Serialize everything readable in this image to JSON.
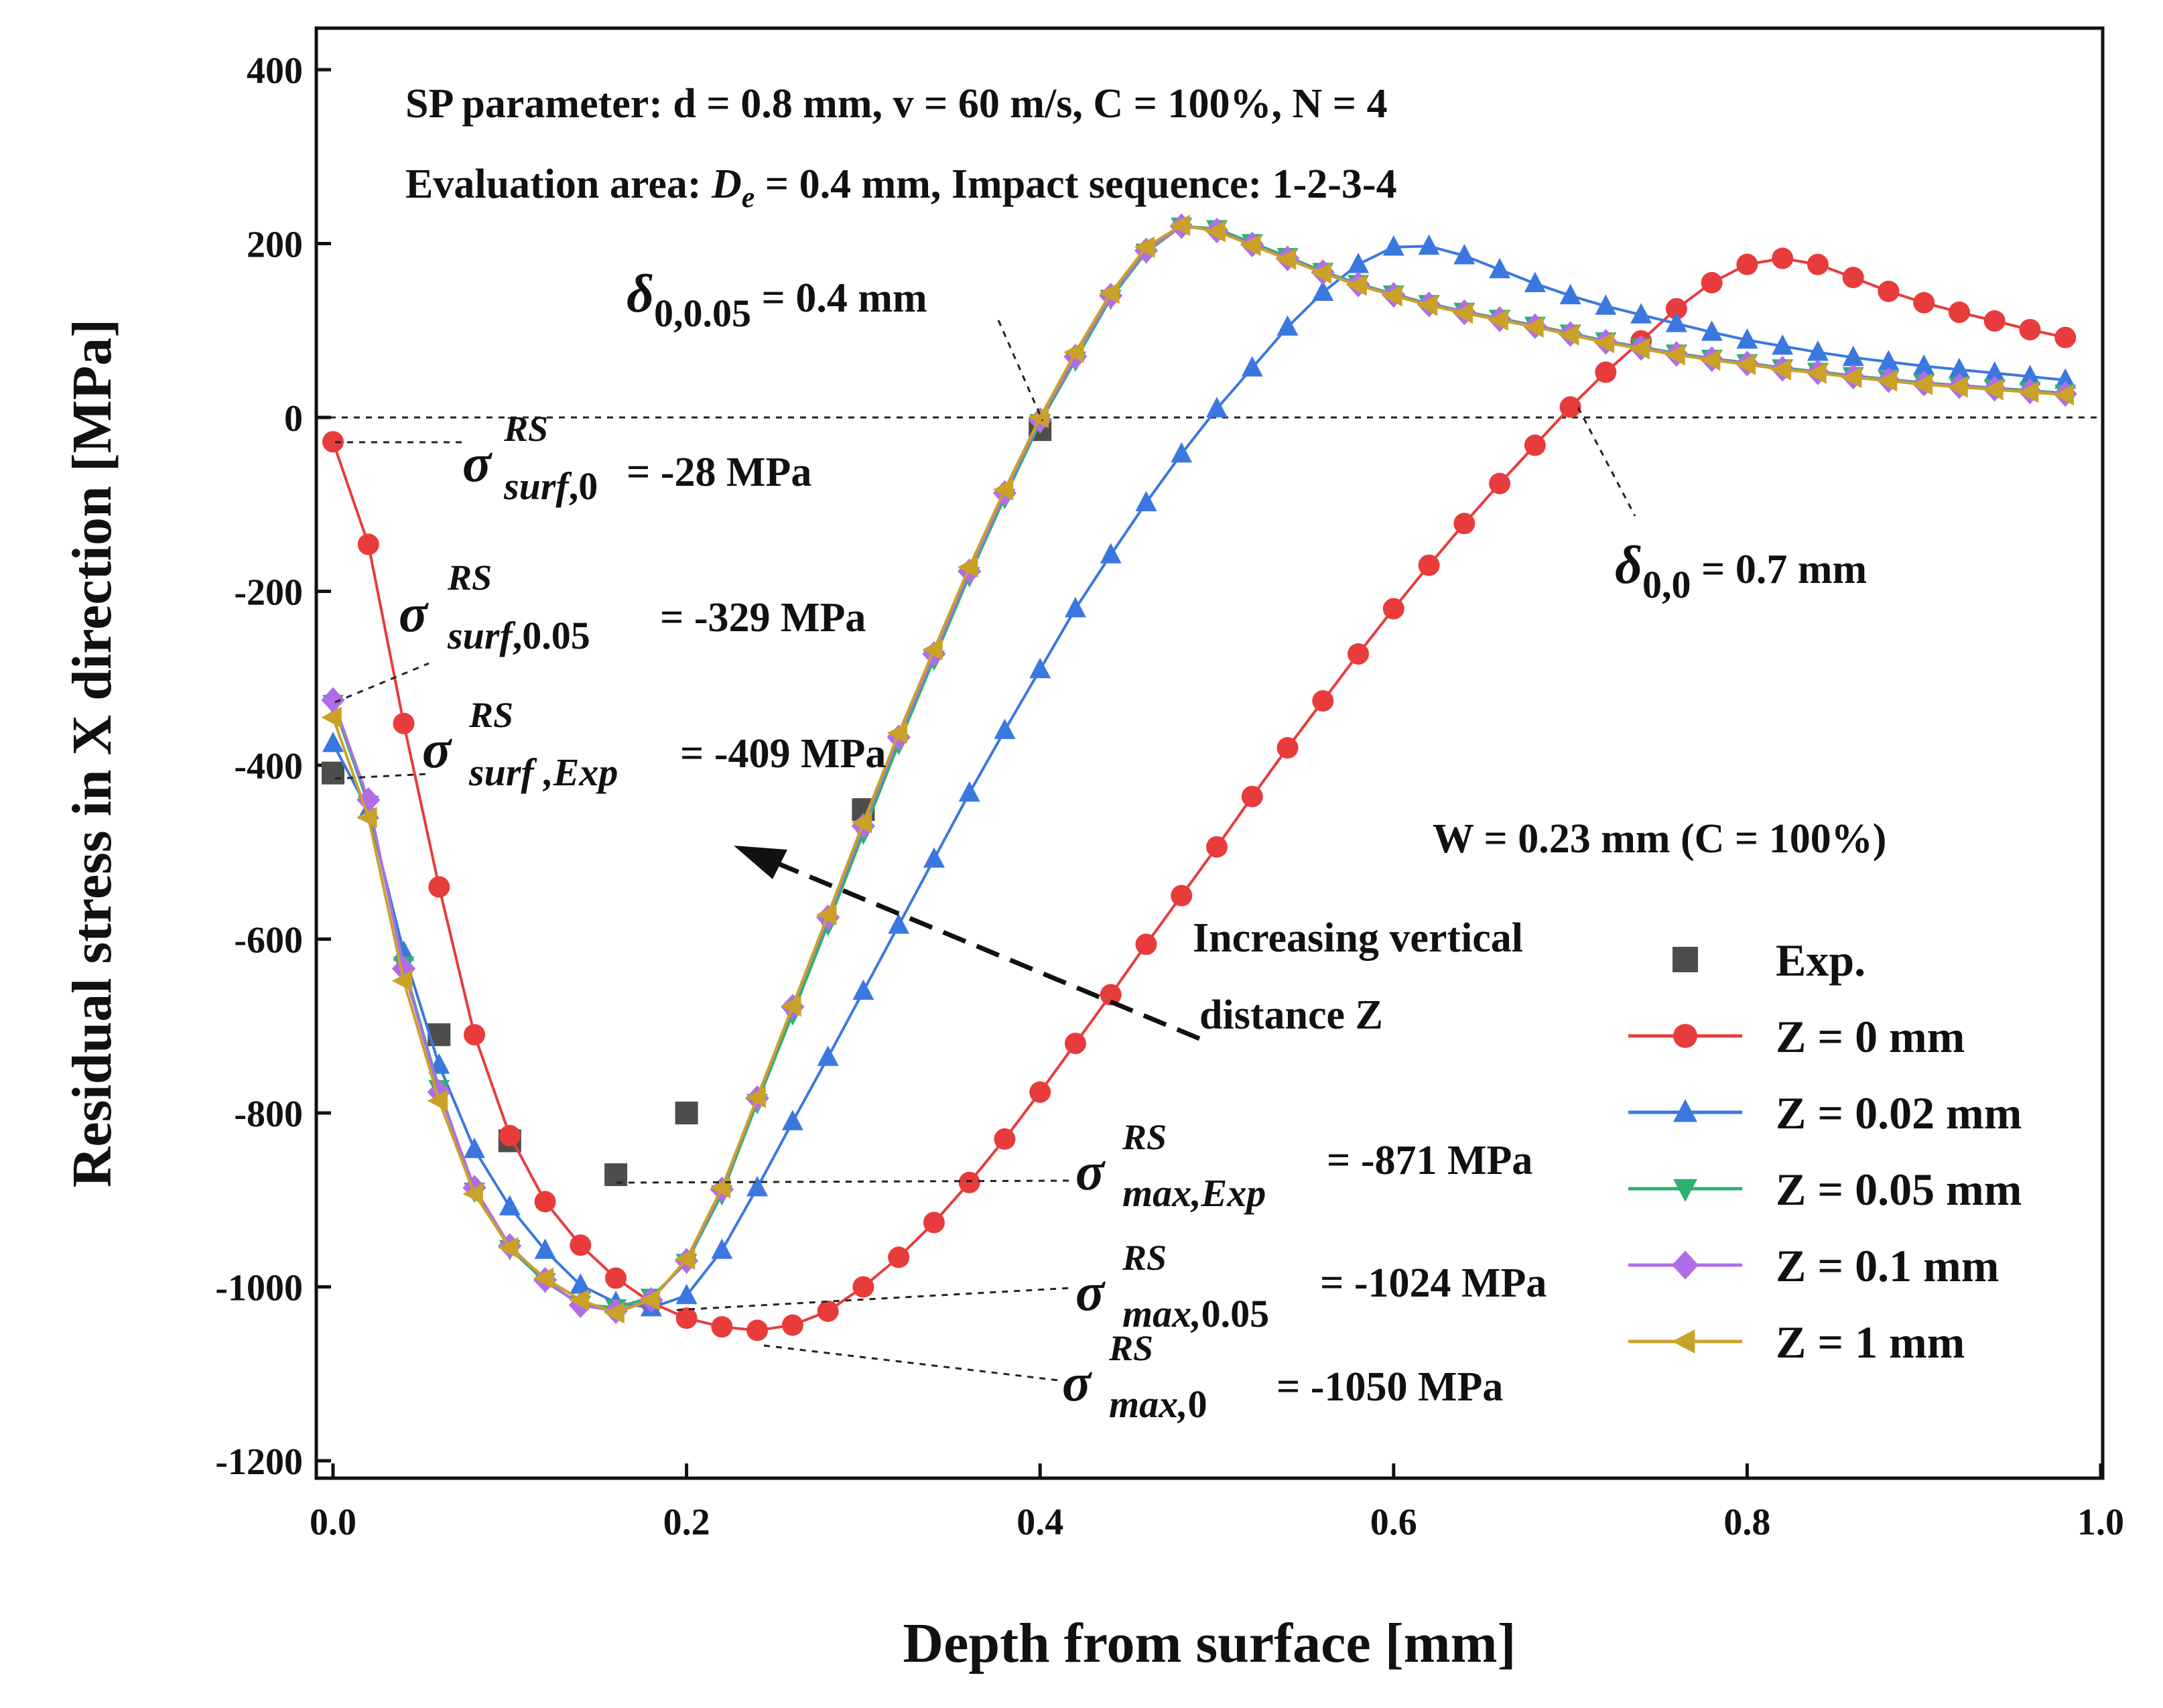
{
  "chart_data": {
    "type": "line",
    "xlabel": "Depth from surface [mm]",
    "ylabel": "Residual stress in X direction [MPa]",
    "xlim": [
      0.0,
      1.0
    ],
    "ylim": [
      -1200,
      400
    ],
    "x_ticks": [
      "0.0",
      "0.2",
      "0.4",
      "0.6",
      "0.8",
      "1.0"
    ],
    "y_ticks": [
      "-1200",
      "-1000",
      "-800",
      "-600",
      "-400",
      "-200",
      "0",
      "200",
      "400"
    ],
    "grid": false,
    "legend_position": "bottom-right",
    "series": [
      {
        "name": "Exp.",
        "marker": "square",
        "color": "#4d4d4d",
        "line": false,
        "x": [
          0.0,
          0.06,
          0.1,
          0.16,
          0.2,
          0.3,
          0.4
        ],
        "y": [
          -409,
          -710,
          -832,
          -871,
          -800,
          -451,
          -14
        ]
      },
      {
        "name": "Z = 0 mm",
        "marker": "circle",
        "color": "#e83b3b",
        "line": true,
        "x": [
          0.0,
          0.02,
          0.04,
          0.06,
          0.08,
          0.1,
          0.12,
          0.14,
          0.16,
          0.18,
          0.2,
          0.22,
          0.24,
          0.26,
          0.28,
          0.3,
          0.32,
          0.34,
          0.36,
          0.38,
          0.4,
          0.42,
          0.44,
          0.46,
          0.48,
          0.5,
          0.52,
          0.54,
          0.56,
          0.58,
          0.6,
          0.62,
          0.64,
          0.66,
          0.68,
          0.7,
          0.72,
          0.74,
          0.76,
          0.78,
          0.8,
          0.82,
          0.84,
          0.86,
          0.88,
          0.9,
          0.92,
          0.94,
          0.96,
          0.98
        ],
        "y": [
          -28,
          -146,
          -352,
          -540,
          -710,
          -826,
          -902,
          -952,
          -990,
          -1018,
          -1036,
          -1046,
          -1050,
          -1044,
          -1028,
          -1000,
          -966,
          -926,
          -880,
          -830,
          -776,
          -720,
          -664,
          -606,
          -550,
          -494,
          -436,
          -380,
          -326,
          -272,
          -220,
          -170,
          -122,
          -76,
          -32,
          12,
          52,
          88,
          125,
          155,
          176,
          183,
          176,
          161,
          145,
          132,
          121,
          111,
          101,
          92
        ]
      },
      {
        "name": "Z = 0.02 mm",
        "marker": "triangle-up",
        "color": "#3a78e0",
        "line": true,
        "x": [
          0.0,
          0.02,
          0.04,
          0.06,
          0.08,
          0.1,
          0.12,
          0.14,
          0.16,
          0.18,
          0.2,
          0.22,
          0.24,
          0.26,
          0.28,
          0.3,
          0.32,
          0.34,
          0.36,
          0.38,
          0.4,
          0.42,
          0.44,
          0.46,
          0.48,
          0.5,
          0.52,
          0.54,
          0.56,
          0.58,
          0.6,
          0.62,
          0.64,
          0.66,
          0.68,
          0.7,
          0.72,
          0.74,
          0.76,
          0.78,
          0.8,
          0.82,
          0.84,
          0.86,
          0.88,
          0.9,
          0.92,
          0.94,
          0.96,
          0.98
        ],
        "y": [
          -375,
          -452,
          -615,
          -745,
          -842,
          -908,
          -958,
          -998,
          -1018,
          -1024,
          -1010,
          -958,
          -886,
          -810,
          -736,
          -660,
          -584,
          -508,
          -432,
          -360,
          -290,
          -220,
          -158,
          -98,
          -42,
          10,
          57,
          104,
          144,
          176,
          196,
          197,
          186,
          170,
          154,
          140,
          128,
          118,
          108,
          98,
          89,
          82,
          75,
          69,
          64,
          59,
          55,
          51,
          47,
          43
        ]
      },
      {
        "name": "Z = 0.05 mm",
        "marker": "triangle-down",
        "color": "#2fb070",
        "line": true,
        "x": [
          0.0,
          0.02,
          0.04,
          0.06,
          0.08,
          0.1,
          0.12,
          0.14,
          0.16,
          0.18,
          0.2,
          0.22,
          0.24,
          0.26,
          0.28,
          0.3,
          0.32,
          0.34,
          0.36,
          0.38,
          0.4,
          0.42,
          0.44,
          0.46,
          0.48,
          0.5,
          0.52,
          0.54,
          0.56,
          0.58,
          0.6,
          0.62,
          0.64,
          0.66,
          0.68,
          0.7,
          0.72,
          0.74,
          0.76,
          0.78,
          0.8,
          0.82,
          0.84,
          0.86,
          0.88,
          0.9,
          0.92,
          0.94,
          0.96,
          0.98
        ],
        "y": [
          -329,
          -445,
          -630,
          -772,
          -890,
          -956,
          -994,
          -1020,
          -1024,
          -1012,
          -972,
          -893,
          -788,
          -686,
          -583,
          -478,
          -375,
          -278,
          -182,
          -92,
          -6,
          66,
          137,
          190,
          220,
          217,
          201,
          185,
          168,
          154,
          142,
          131,
          122,
          114,
          106,
          97,
          88,
          81,
          74,
          68,
          63,
          57,
          53,
          48,
          44,
          40,
          37,
          34,
          31,
          28
        ]
      },
      {
        "name": "Z = 0.1 mm",
        "marker": "diamond",
        "color": "#b06de8",
        "line": true,
        "x": [
          0.0,
          0.02,
          0.04,
          0.06,
          0.08,
          0.1,
          0.12,
          0.14,
          0.16,
          0.18,
          0.2,
          0.22,
          0.24,
          0.26,
          0.28,
          0.3,
          0.32,
          0.34,
          0.36,
          0.38,
          0.4,
          0.42,
          0.44,
          0.46,
          0.48,
          0.5,
          0.52,
          0.54,
          0.56,
          0.58,
          0.6,
          0.62,
          0.64,
          0.66,
          0.68,
          0.7,
          0.72,
          0.74,
          0.76,
          0.78,
          0.8,
          0.82,
          0.84,
          0.86,
          0.88,
          0.9,
          0.92,
          0.94,
          0.96,
          0.98
        ],
        "y": [
          -325,
          -440,
          -634,
          -776,
          -886,
          -953,
          -992,
          -1021,
          -1028,
          -1015,
          -970,
          -888,
          -783,
          -678,
          -575,
          -470,
          -368,
          -272,
          -177,
          -87,
          -3,
          70,
          140,
          192,
          220,
          215,
          199,
          183,
          167,
          153,
          141,
          130,
          121,
          113,
          105,
          96,
          87,
          80,
          73,
          67,
          62,
          56,
          52,
          47,
          43,
          39,
          36,
          33,
          30,
          27
        ]
      },
      {
        "name": "Z = 1 mm",
        "marker": "triangle-left",
        "color": "#c9a227",
        "line": true,
        "x": [
          0.0,
          0.02,
          0.04,
          0.06,
          0.08,
          0.1,
          0.12,
          0.14,
          0.16,
          0.18,
          0.2,
          0.22,
          0.24,
          0.26,
          0.28,
          0.3,
          0.32,
          0.34,
          0.36,
          0.38,
          0.4,
          0.42,
          0.44,
          0.46,
          0.48,
          0.5,
          0.52,
          0.54,
          0.56,
          0.58,
          0.6,
          0.62,
          0.64,
          0.66,
          0.68,
          0.7,
          0.72,
          0.74,
          0.76,
          0.78,
          0.8,
          0.82,
          0.84,
          0.86,
          0.88,
          0.9,
          0.92,
          0.94,
          0.96,
          0.98
        ],
        "y": [
          -345,
          -460,
          -648,
          -786,
          -893,
          -955,
          -990,
          -1015,
          -1030,
          -1015,
          -968,
          -886,
          -782,
          -677,
          -572,
          -466,
          -363,
          -267,
          -172,
          -83,
          0,
          75,
          143,
          196,
          221,
          214,
          198,
          182,
          166,
          152,
          140,
          129,
          120,
          112,
          104,
          95,
          86,
          79,
          72,
          66,
          61,
          55,
          51,
          46,
          42,
          38,
          35,
          32,
          29,
          26
        ]
      }
    ],
    "annotations": {
      "sp_line1": "SP parameter: d = 0.8 mm, v = 60 m/s, C = 100%, N = 4",
      "sp_line2_a": "Evaluation area: ",
      "sp_line2_sym": "D",
      "sp_line2_sub": "e",
      "sp_line2_b": " = 0.4 mm, Impact sequence: 1-2-3-4",
      "width_note": "W = 0.23 mm (C = 100%)",
      "arrow_label_1": "Increasing vertical",
      "arrow_label_2": "distance Z",
      "delta_symbol": "δ",
      "delta1_sub": "0,0.05",
      "delta1_val": " = 0.4 mm",
      "delta2_sub": "0,0",
      "delta2_val": " = 0.7 mm",
      "sigma_symbol": "σ",
      "rs_sup": "RS",
      "surf0_sub": "surf",
      "surf0_sub2": ",0",
      "surf0_val": " = -28 MPa",
      "surf005_sub": "surf",
      "surf005_sub2": ",0.05",
      "surf005_val": " = -329 MPa",
      "surfexp_sub": "surf ,Exp",
      "surfexp_val": " = -409 MPa",
      "maxexp_sub": "max,Exp",
      "maxexp_val": " = -871 MPa",
      "max005_sub": "max,",
      "max005_sub2": "0.05",
      "max005_val": " = -1024 MPa",
      "max0_sub": "max,",
      "max0_sub2": "0",
      "max0_val": " = -1050 MPa"
    }
  }
}
